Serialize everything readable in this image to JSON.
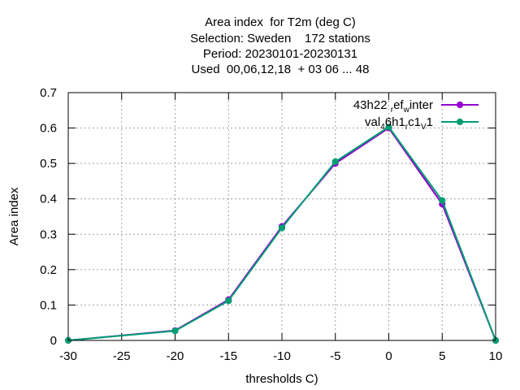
{
  "chart_data": {
    "type": "line",
    "title_lines": [
      "Area index  for T2m (deg C)",
      "Selection: Sweden    172 stations",
      "Period: 20230101-20230131",
      "Used  00,06,12,18  + 03 06 ... 48"
    ],
    "xlabel": "thresholds C)",
    "ylabel": "Area index",
    "xlim": [
      -30,
      10
    ],
    "ylim": [
      0,
      0.7
    ],
    "xticks": [
      -30,
      -25,
      -20,
      -15,
      -10,
      -5,
      0,
      5,
      10
    ],
    "yticks": [
      0,
      0.1,
      0.2,
      0.3,
      0.4,
      0.5,
      0.6,
      0.7
    ],
    "xtick_labels": [
      "-30",
      "-25",
      "-20",
      "-15",
      "-10",
      "-5",
      "0",
      "5",
      "10"
    ],
    "ytick_labels": [
      "0",
      "0.1",
      "0.2",
      "0.3",
      "0.4",
      "0.5",
      "0.6",
      "0.7"
    ],
    "grid": true,
    "legend_position": "top-right",
    "series": [
      {
        "name": "43h22 ref inter",
        "legend_parts": [
          [
            "43h22 ",
            "n"
          ],
          [
            "r",
            "sub"
          ],
          [
            "ef",
            "n"
          ],
          [
            "w",
            "sub"
          ],
          [
            "inter",
            "n"
          ]
        ],
        "color": "#9400d3",
        "x": [
          -30,
          -20,
          -15,
          -10,
          -5,
          0,
          5,
          10
        ],
        "y": [
          0.0,
          0.028,
          0.115,
          0.322,
          0.5,
          0.6,
          0.385,
          0.0
        ]
      },
      {
        "name": "val 46h1 rc1 v1",
        "legend_parts": [
          [
            "val",
            "n"
          ],
          [
            "4",
            "sub"
          ],
          [
            "6h1",
            "n"
          ],
          [
            "r",
            "sub"
          ],
          [
            "c1",
            "n"
          ],
          [
            "V",
            "sub"
          ],
          [
            "1",
            "n"
          ]
        ],
        "color": "#009e73",
        "x": [
          -30,
          -20,
          -15,
          -10,
          -5,
          0,
          5,
          10
        ],
        "y": [
          0.0,
          0.027,
          0.112,
          0.318,
          0.505,
          0.603,
          0.395,
          0.0
        ]
      }
    ]
  }
}
